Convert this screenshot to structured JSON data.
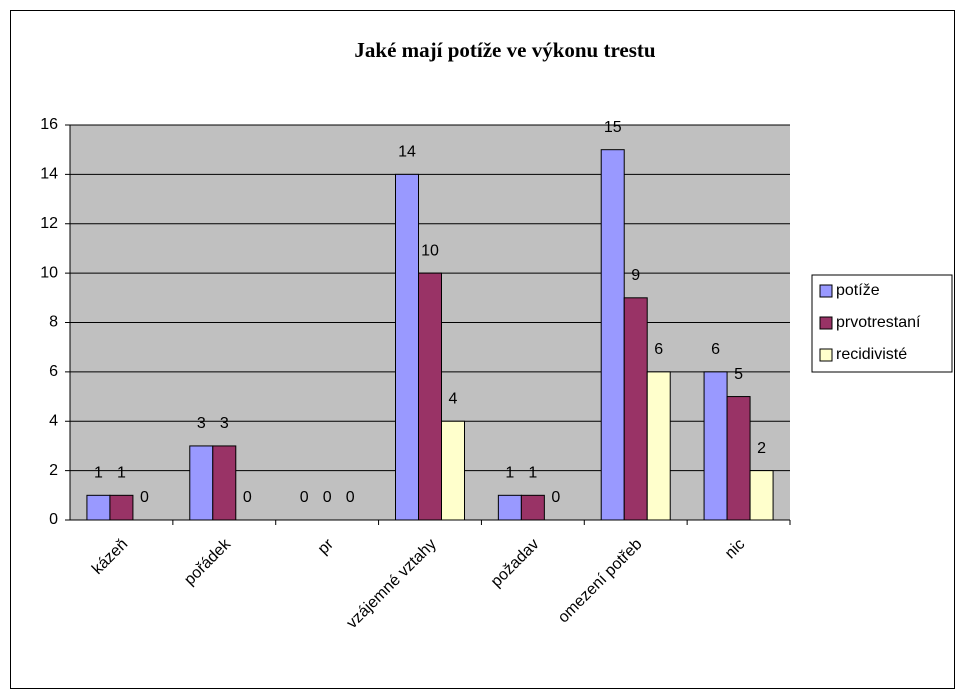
{
  "chart_data": {
    "type": "bar",
    "title": "Jaké mají potíže ve výkonu trestu",
    "categories": [
      "kázeň",
      "pořádek",
      "pr",
      "vzájemné vztahy",
      "požadav",
      "omezení potřeb",
      "nic"
    ],
    "series": [
      {
        "name": "potíže",
        "color": "#9999ff",
        "values": [
          1,
          3,
          0,
          14,
          1,
          15,
          6
        ]
      },
      {
        "name": "prvotrestaní",
        "color": "#993366",
        "values": [
          1,
          3,
          0,
          10,
          1,
          9,
          5
        ]
      },
      {
        "name": "recidivisté",
        "color": "#ffffcc",
        "values": [
          0,
          0,
          0,
          4,
          0,
          6,
          2
        ]
      }
    ],
    "ylim": [
      0,
      16
    ],
    "yticks": [
      0,
      2,
      4,
      6,
      8,
      10,
      12,
      14,
      16
    ],
    "grid": true,
    "legend": "right"
  }
}
